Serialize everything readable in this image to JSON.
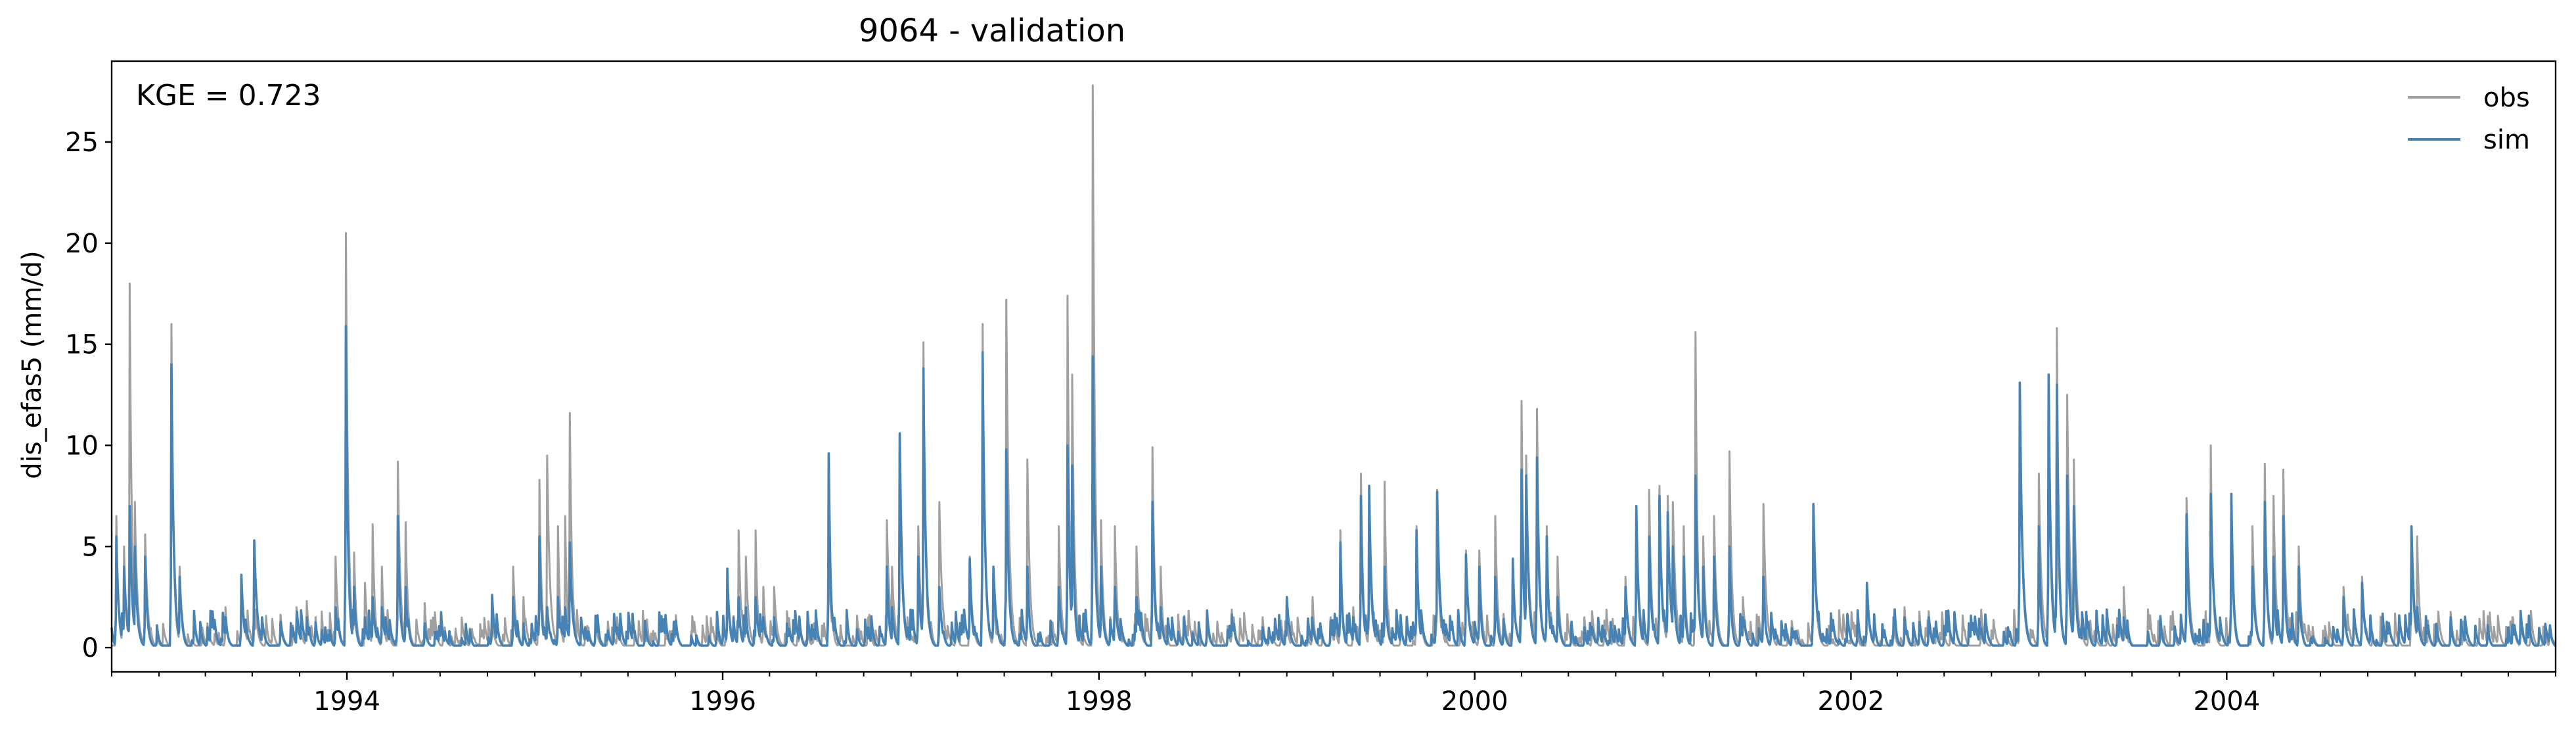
{
  "chart_data": {
    "type": "line",
    "title": "9064 - validation",
    "xlabel": "",
    "ylabel": "dis_efas5 (mm/d)",
    "annotation": "KGE = 0.723",
    "xlim": [
      "1992-10-01",
      "2005-10-01"
    ],
    "ylim": [
      -1.2,
      29
    ],
    "x_ticks": [
      "1994-01-01",
      "1996-01-01",
      "1998-01-01",
      "2000-01-01",
      "2002-01-01",
      "2004-01-01"
    ],
    "x_tick_labels": [
      "1994",
      "1996",
      "1998",
      "2000",
      "2002",
      "2004"
    ],
    "y_ticks": [
      0,
      5,
      10,
      15,
      20,
      25
    ],
    "y_tick_labels": [
      "0",
      "5",
      "10",
      "15",
      "20",
      "25"
    ],
    "grid": false,
    "legend_position": "top-right",
    "baseflow": 0.1,
    "series": [
      {
        "name": "obs",
        "color": "#a0a0a0",
        "peaks": [
          [
            "1992-10-10",
            6.5
          ],
          [
            "1992-10-25",
            5.0
          ],
          [
            "1992-11-05",
            18.0
          ],
          [
            "1992-11-15",
            7.2
          ],
          [
            "1992-12-05",
            5.6
          ],
          [
            "1993-01-25",
            16.0
          ],
          [
            "1993-02-10",
            4.0
          ],
          [
            "1993-04-05",
            1.2
          ],
          [
            "1993-05-10",
            2.0
          ],
          [
            "1993-06-10",
            3.5
          ],
          [
            "1993-07-05",
            1.5
          ],
          [
            "1993-09-25",
            2.0
          ],
          [
            "1993-10-15",
            2.3
          ],
          [
            "1993-11-20",
            1.0
          ],
          [
            "1993-12-10",
            4.5
          ],
          [
            "1993-12-30",
            20.5
          ],
          [
            "1994-01-15",
            4.7
          ],
          [
            "1994-02-05",
            3.2
          ],
          [
            "1994-02-20",
            6.1
          ],
          [
            "1994-03-10",
            4.0
          ],
          [
            "1994-04-10",
            9.2
          ],
          [
            "1994-04-25",
            6.2
          ],
          [
            "1994-06-01",
            2.2
          ],
          [
            "1994-07-10",
            1.0
          ],
          [
            "1994-10-10",
            1.5
          ],
          [
            "1994-11-20",
            4.0
          ],
          [
            "1994-12-10",
            2.5
          ],
          [
            "1995-01-10",
            8.3
          ],
          [
            "1995-01-25",
            9.5
          ],
          [
            "1995-02-15",
            6.0
          ],
          [
            "1995-03-01",
            6.5
          ],
          [
            "1995-03-10",
            11.6
          ],
          [
            "1995-04-15",
            1.0
          ],
          [
            "1995-06-10",
            1.5
          ],
          [
            "1995-11-01",
            0.8
          ],
          [
            "1996-01-10",
            3.5
          ],
          [
            "1996-02-01",
            5.8
          ],
          [
            "1996-02-15",
            4.5
          ],
          [
            "1996-03-05",
            5.8
          ],
          [
            "1996-03-20",
            3.0
          ],
          [
            "1996-04-10",
            3.0
          ],
          [
            "1996-05-05",
            1.8
          ],
          [
            "1996-07-25",
            5.0
          ],
          [
            "1996-10-10",
            1.5
          ],
          [
            "1996-11-15",
            6.3
          ],
          [
            "1996-11-25",
            4.0
          ],
          [
            "1996-12-10",
            10.5
          ],
          [
            "1996-12-25",
            1.5
          ],
          [
            "1997-01-15",
            6.0
          ],
          [
            "1997-01-25",
            15.1
          ],
          [
            "1997-02-25",
            7.2
          ],
          [
            "1997-04-25",
            4.5
          ],
          [
            "1997-05-20",
            16.0
          ],
          [
            "1997-06-10",
            3.5
          ],
          [
            "1997-07-05",
            17.2
          ],
          [
            "1997-08-15",
            9.3
          ],
          [
            "1997-10-15",
            6.0
          ],
          [
            "1997-11-01",
            17.4
          ],
          [
            "1997-11-10",
            13.5
          ],
          [
            "1997-12-20",
            27.8
          ],
          [
            "1998-01-05",
            6.3
          ],
          [
            "1998-02-01",
            6.0
          ],
          [
            "1998-03-15",
            5.0
          ],
          [
            "1998-04-15",
            9.9
          ],
          [
            "1998-05-01",
            4.0
          ],
          [
            "1998-06-15",
            1.0
          ],
          [
            "1998-09-20",
            1.5
          ],
          [
            "1998-11-15",
            1.5
          ],
          [
            "1999-01-01",
            1.5
          ],
          [
            "1999-02-20",
            2.5
          ],
          [
            "1999-04-15",
            5.8
          ],
          [
            "1999-05-10",
            2.0
          ],
          [
            "1999-05-25",
            8.6
          ],
          [
            "1999-06-10",
            6.0
          ],
          [
            "1999-07-10",
            8.2
          ],
          [
            "1999-09-10",
            6.0
          ],
          [
            "1999-10-20",
            7.8
          ],
          [
            "1999-12-15",
            4.8
          ],
          [
            "2000-01-10",
            4.8
          ],
          [
            "2000-02-10",
            6.5
          ],
          [
            "2000-03-15",
            3.5
          ],
          [
            "2000-04-01",
            12.2
          ],
          [
            "2000-04-10",
            9.5
          ],
          [
            "2000-05-01",
            11.8
          ],
          [
            "2000-05-20",
            6.0
          ],
          [
            "2000-06-10",
            4.5
          ],
          [
            "2000-08-01",
            1.5
          ],
          [
            "2000-10-20",
            3.5
          ],
          [
            "2000-11-10",
            6.5
          ],
          [
            "2000-12-05",
            7.8
          ],
          [
            "2000-12-25",
            8.0
          ],
          [
            "2001-01-10",
            7.5
          ],
          [
            "2001-01-20",
            7.2
          ],
          [
            "2001-02-10",
            6.0
          ],
          [
            "2001-03-05",
            15.6
          ],
          [
            "2001-03-20",
            5.5
          ],
          [
            "2001-04-10",
            6.5
          ],
          [
            "2001-05-10",
            9.7
          ],
          [
            "2001-06-05",
            2.5
          ],
          [
            "2001-07-15",
            7.1
          ],
          [
            "2001-10-20",
            7.1
          ],
          [
            "2002-02-01",
            3.2
          ],
          [
            "2002-03-25",
            1.5
          ],
          [
            "2002-04-15",
            2.0
          ],
          [
            "2002-06-01",
            1.8
          ],
          [
            "2002-11-25",
            12.8
          ],
          [
            "2003-01-01",
            8.6
          ],
          [
            "2003-01-20",
            13.0
          ],
          [
            "2003-02-05",
            15.8
          ],
          [
            "2003-02-25",
            12.5
          ],
          [
            "2003-03-10",
            9.3
          ],
          [
            "2003-06-15",
            3.0
          ],
          [
            "2003-10-15",
            7.4
          ],
          [
            "2003-12-01",
            10.0
          ],
          [
            "2004-01-10",
            7.5
          ],
          [
            "2004-02-20",
            6.0
          ],
          [
            "2004-03-15",
            9.1
          ],
          [
            "2004-04-01",
            7.5
          ],
          [
            "2004-04-20",
            8.8
          ],
          [
            "2004-05-20",
            5.0
          ],
          [
            "2004-08-15",
            3.0
          ],
          [
            "2004-09-20",
            3.5
          ],
          [
            "2004-12-25",
            6.0
          ],
          [
            "2005-01-05",
            5.5
          ],
          [
            "2005-07-10",
            1.5
          ],
          [
            "2005-09-20",
            1.0
          ]
        ]
      },
      {
        "name": "sim",
        "color": "#4682b4",
        "peaks": [
          [
            "1992-10-10",
            5.5
          ],
          [
            "1992-10-25",
            4.0
          ],
          [
            "1992-11-05",
            7.0
          ],
          [
            "1992-11-15",
            5.0
          ],
          [
            "1992-12-05",
            4.5
          ],
          [
            "1993-01-25",
            14.0
          ],
          [
            "1993-02-10",
            3.5
          ],
          [
            "1993-04-05",
            1.0
          ],
          [
            "1993-05-10",
            1.5
          ],
          [
            "1993-06-10",
            3.6
          ],
          [
            "1993-07-05",
            5.3
          ],
          [
            "1993-09-25",
            1.0
          ],
          [
            "1993-10-15",
            1.5
          ],
          [
            "1993-11-20",
            1.0
          ],
          [
            "1993-12-10",
            2.0
          ],
          [
            "1993-12-30",
            15.9
          ],
          [
            "1994-01-15",
            3.0
          ],
          [
            "1994-02-05",
            1.5
          ],
          [
            "1994-02-20",
            2.5
          ],
          [
            "1994-03-10",
            2.0
          ],
          [
            "1994-04-10",
            6.5
          ],
          [
            "1994-04-25",
            3.0
          ],
          [
            "1994-06-01",
            1.0
          ],
          [
            "1994-07-10",
            0.8
          ],
          [
            "1994-10-10",
            2.6
          ],
          [
            "1994-11-20",
            2.5
          ],
          [
            "1994-12-10",
            1.2
          ],
          [
            "1995-01-10",
            5.5
          ],
          [
            "1995-01-25",
            2.0
          ],
          [
            "1995-02-15",
            2.5
          ],
          [
            "1995-03-01",
            2.0
          ],
          [
            "1995-03-10",
            5.2
          ],
          [
            "1995-04-15",
            0.8
          ],
          [
            "1995-06-10",
            1.0
          ],
          [
            "1995-11-01",
            0.6
          ],
          [
            "1996-01-10",
            3.9
          ],
          [
            "1996-02-01",
            2.5
          ],
          [
            "1996-02-15",
            2.0
          ],
          [
            "1996-03-05",
            2.5
          ],
          [
            "1996-03-20",
            1.5
          ],
          [
            "1996-04-10",
            1.5
          ],
          [
            "1996-05-05",
            1.0
          ],
          [
            "1996-07-25",
            9.6
          ],
          [
            "1996-10-10",
            1.0
          ],
          [
            "1996-11-15",
            4.0
          ],
          [
            "1996-11-25",
            2.0
          ],
          [
            "1996-12-10",
            10.6
          ],
          [
            "1996-12-25",
            1.0
          ],
          [
            "1997-01-15",
            4.5
          ],
          [
            "1997-01-25",
            13.8
          ],
          [
            "1997-02-25",
            3.0
          ],
          [
            "1997-04-25",
            4.4
          ],
          [
            "1997-05-20",
            14.6
          ],
          [
            "1997-06-10",
            4.0
          ],
          [
            "1997-07-05",
            9.8
          ],
          [
            "1997-08-15",
            4.0
          ],
          [
            "1997-10-15",
            3.0
          ],
          [
            "1997-11-01",
            10.0
          ],
          [
            "1997-11-10",
            9.0
          ],
          [
            "1997-12-20",
            14.4
          ],
          [
            "1998-01-05",
            4.0
          ],
          [
            "1998-02-01",
            3.0
          ],
          [
            "1998-03-15",
            2.5
          ],
          [
            "1998-04-15",
            7.2
          ],
          [
            "1998-05-01",
            2.0
          ],
          [
            "1998-06-15",
            1.5
          ],
          [
            "1998-09-20",
            1.0
          ],
          [
            "1998-11-15",
            1.0
          ],
          [
            "1999-01-01",
            2.5
          ],
          [
            "1999-02-20",
            1.0
          ],
          [
            "1999-04-15",
            5.2
          ],
          [
            "1999-05-10",
            1.5
          ],
          [
            "1999-05-25",
            7.5
          ],
          [
            "1999-06-10",
            8.0
          ],
          [
            "1999-07-10",
            4.0
          ],
          [
            "1999-09-10",
            5.8
          ],
          [
            "1999-10-20",
            7.7
          ],
          [
            "1999-12-15",
            4.6
          ],
          [
            "2000-01-10",
            4.0
          ],
          [
            "2000-02-10",
            3.5
          ],
          [
            "2000-03-15",
            4.4
          ],
          [
            "2000-04-01",
            8.8
          ],
          [
            "2000-04-10",
            8.5
          ],
          [
            "2000-05-01",
            9.4
          ],
          [
            "2000-05-20",
            5.5
          ],
          [
            "2000-06-10",
            2.5
          ],
          [
            "2000-08-01",
            1.0
          ],
          [
            "2000-10-20",
            3.0
          ],
          [
            "2000-11-10",
            7.0
          ],
          [
            "2000-12-05",
            5.5
          ],
          [
            "2000-12-25",
            7.5
          ],
          [
            "2001-01-10",
            6.7
          ],
          [
            "2001-01-20",
            5.0
          ],
          [
            "2001-02-10",
            4.5
          ],
          [
            "2001-03-05",
            8.5
          ],
          [
            "2001-03-20",
            4.0
          ],
          [
            "2001-04-10",
            4.5
          ],
          [
            "2001-05-10",
            5.0
          ],
          [
            "2001-06-05",
            1.5
          ],
          [
            "2001-07-15",
            3.5
          ],
          [
            "2001-10-20",
            7.1
          ],
          [
            "2002-02-01",
            3.2
          ],
          [
            "2002-03-25",
            1.5
          ],
          [
            "2002-04-15",
            1.5
          ],
          [
            "2002-06-01",
            1.5
          ],
          [
            "2002-11-25",
            13.1
          ],
          [
            "2003-01-01",
            6.0
          ],
          [
            "2003-01-20",
            13.5
          ],
          [
            "2003-02-05",
            13.0
          ],
          [
            "2003-02-25",
            8.5
          ],
          [
            "2003-03-10",
            7.0
          ],
          [
            "2003-06-15",
            1.5
          ],
          [
            "2003-10-15",
            6.6
          ],
          [
            "2003-12-01",
            7.6
          ],
          [
            "2004-01-10",
            7.6
          ],
          [
            "2004-02-20",
            4.0
          ],
          [
            "2004-03-15",
            7.2
          ],
          [
            "2004-04-01",
            4.5
          ],
          [
            "2004-04-20",
            6.5
          ],
          [
            "2004-05-20",
            4.0
          ],
          [
            "2004-08-15",
            2.5
          ],
          [
            "2004-09-20",
            3.2
          ],
          [
            "2004-12-25",
            6.0
          ],
          [
            "2005-01-05",
            2.0
          ],
          [
            "2005-07-10",
            1.0
          ],
          [
            "2005-09-20",
            1.1
          ]
        ]
      }
    ]
  }
}
